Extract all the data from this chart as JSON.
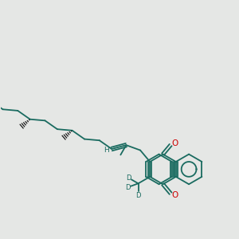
{
  "background_color": "#e5e7e5",
  "bond_color": "#1a6b60",
  "oxygen_color": "#cc0000",
  "deuterium_color": "#1a6b60",
  "h_color": "#1a6b60",
  "black_color": "#111111",
  "line_width": 1.3,
  "figsize": [
    3.0,
    3.0
  ],
  "dpi": 100,
  "xlim": [
    0,
    300
  ],
  "ylim": [
    0,
    300
  ]
}
